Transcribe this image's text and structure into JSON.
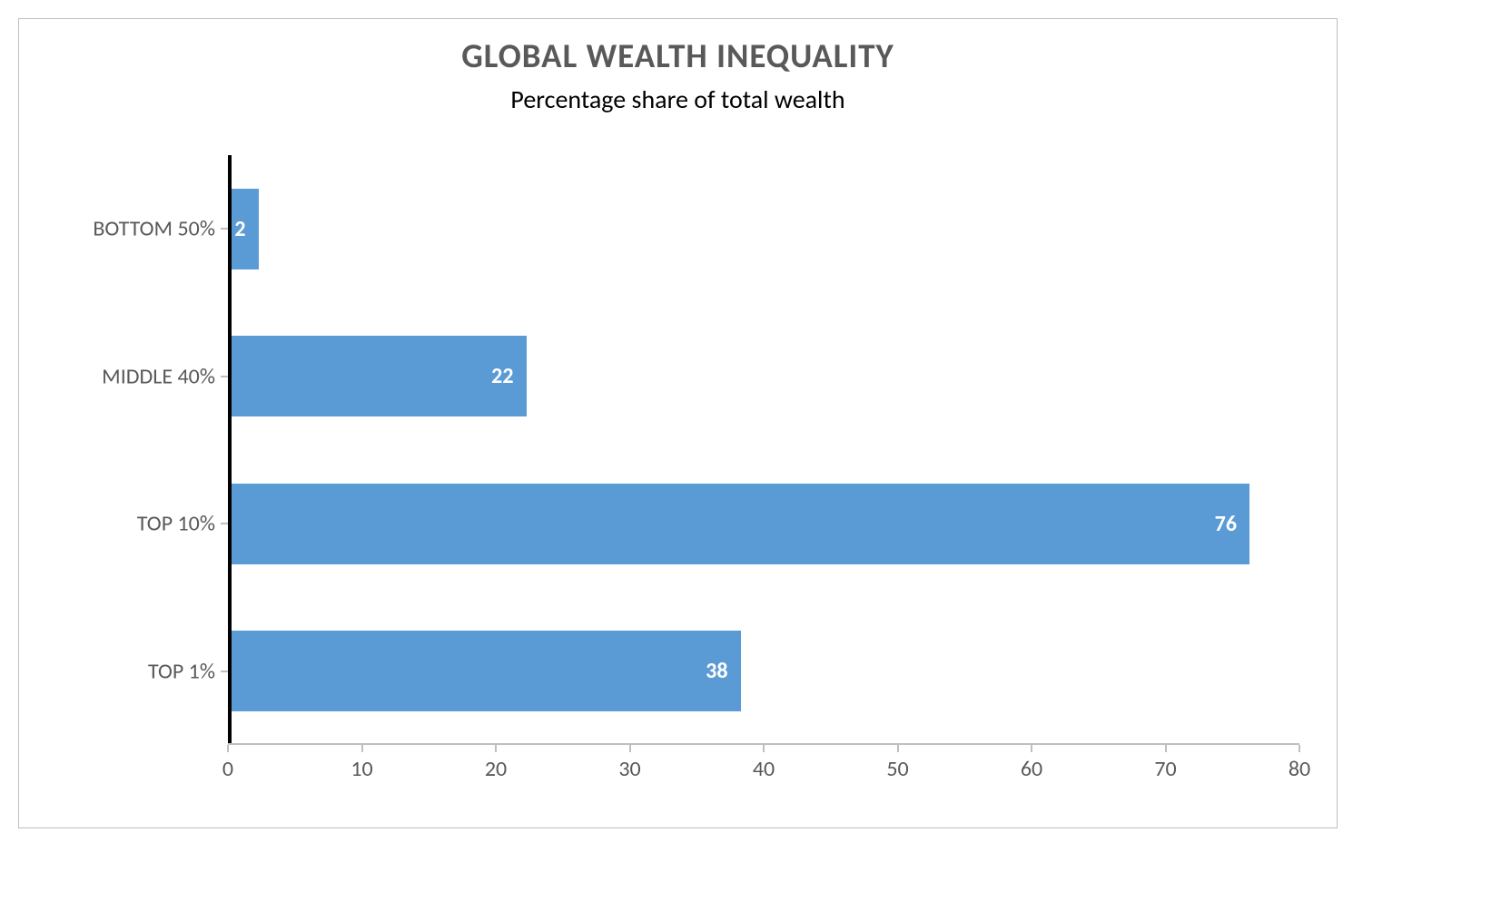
{
  "chart": {
    "type": "bar-horizontal",
    "title": "GLOBAL WEALTH INEQUALITY",
    "title_fontsize": 37,
    "title_color": "#595959",
    "subtitle": "Percentage share of total wealth",
    "subtitle_fontsize": 28,
    "subtitle_color": "#000000",
    "background_color": "#ffffff",
    "border_color": "#bfbfbf",
    "bar_color": "#5b9bd5",
    "bar_fill_ratio": 0.55,
    "data_label_color": "#ffffff",
    "data_label_fontsize": 24,
    "data_label_weight": "700",
    "axis_label_color": "#595959",
    "axis_label_fontsize": 24,
    "axis_line_color": "#000000",
    "tick_color": "#bfbfbf",
    "categories": [
      "BOTTOM 50%",
      "MIDDLE 40%",
      "TOP 10%",
      "TOP 1%"
    ],
    "values": [
      2,
      22,
      76,
      38
    ],
    "xlim": [
      0,
      80
    ],
    "xtick_step": 10,
    "xticks": [
      0,
      10,
      20,
      30,
      40,
      50,
      60,
      70,
      80
    ]
  }
}
